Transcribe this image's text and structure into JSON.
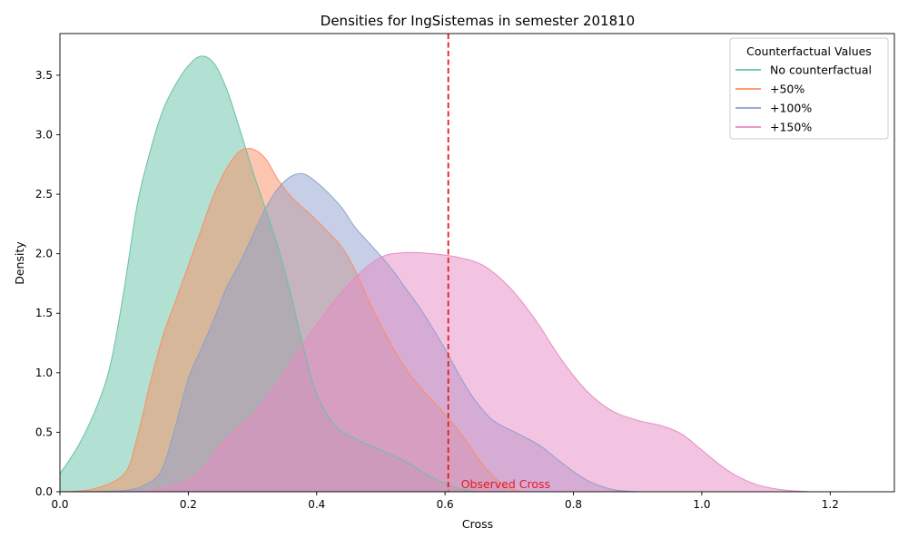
{
  "chart_data": {
    "type": "area",
    "title": "Densities for IngSistemas in semester 201810",
    "xlabel": "Cross",
    "ylabel": "Density",
    "xlim": [
      0.0,
      1.3
    ],
    "ylim": [
      0.0,
      3.85
    ],
    "xticks": [
      "0.0",
      "0.2",
      "0.4",
      "0.6",
      "0.8",
      "1.0",
      "1.2"
    ],
    "yticks": [
      "0.0",
      "0.5",
      "1.0",
      "1.5",
      "2.0",
      "2.5",
      "3.0",
      "3.5"
    ],
    "grid": false,
    "legend": {
      "title": "Counterfactual Values",
      "placement": "top-right"
    },
    "observed_line": {
      "x": 0.605,
      "label": "Observed Cross",
      "color": "#e31a1c"
    },
    "series": [
      {
        "name": "No counterfactual",
        "color": "#66c2a5",
        "points": [
          [
            0.0,
            0.15
          ],
          [
            0.03,
            0.4
          ],
          [
            0.06,
            0.75
          ],
          [
            0.08,
            1.1
          ],
          [
            0.1,
            1.7
          ],
          [
            0.12,
            2.4
          ],
          [
            0.14,
            2.85
          ],
          [
            0.16,
            3.2
          ],
          [
            0.18,
            3.42
          ],
          [
            0.2,
            3.58
          ],
          [
            0.22,
            3.66
          ],
          [
            0.24,
            3.6
          ],
          [
            0.26,
            3.38
          ],
          [
            0.28,
            3.05
          ],
          [
            0.3,
            2.7
          ],
          [
            0.32,
            2.38
          ],
          [
            0.34,
            2.05
          ],
          [
            0.36,
            1.65
          ],
          [
            0.38,
            1.2
          ],
          [
            0.4,
            0.82
          ],
          [
            0.43,
            0.55
          ],
          [
            0.47,
            0.42
          ],
          [
            0.5,
            0.35
          ],
          [
            0.54,
            0.25
          ],
          [
            0.58,
            0.12
          ],
          [
            0.62,
            0.03
          ],
          [
            0.65,
            0.0
          ]
        ]
      },
      {
        "name": "+50%",
        "color": "#fc8d62",
        "points": [
          [
            0.0,
            0.0
          ],
          [
            0.05,
            0.02
          ],
          [
            0.1,
            0.15
          ],
          [
            0.12,
            0.45
          ],
          [
            0.14,
            0.9
          ],
          [
            0.16,
            1.3
          ],
          [
            0.18,
            1.6
          ],
          [
            0.2,
            1.9
          ],
          [
            0.22,
            2.2
          ],
          [
            0.24,
            2.5
          ],
          [
            0.26,
            2.72
          ],
          [
            0.28,
            2.86
          ],
          [
            0.3,
            2.88
          ],
          [
            0.32,
            2.8
          ],
          [
            0.34,
            2.62
          ],
          [
            0.36,
            2.48
          ],
          [
            0.38,
            2.38
          ],
          [
            0.4,
            2.28
          ],
          [
            0.42,
            2.17
          ],
          [
            0.44,
            2.05
          ],
          [
            0.46,
            1.86
          ],
          [
            0.48,
            1.62
          ],
          [
            0.5,
            1.4
          ],
          [
            0.52,
            1.2
          ],
          [
            0.55,
            0.95
          ],
          [
            0.6,
            0.65
          ],
          [
            0.63,
            0.45
          ],
          [
            0.66,
            0.22
          ],
          [
            0.69,
            0.06
          ],
          [
            0.72,
            0.0
          ]
        ]
      },
      {
        "name": "+100%",
        "color": "#8da0cb",
        "points": [
          [
            0.0,
            0.0
          ],
          [
            0.1,
            0.01
          ],
          [
            0.14,
            0.08
          ],
          [
            0.16,
            0.2
          ],
          [
            0.18,
            0.55
          ],
          [
            0.2,
            0.95
          ],
          [
            0.22,
            1.2
          ],
          [
            0.24,
            1.45
          ],
          [
            0.26,
            1.72
          ],
          [
            0.28,
            1.92
          ],
          [
            0.3,
            2.15
          ],
          [
            0.32,
            2.38
          ],
          [
            0.34,
            2.55
          ],
          [
            0.36,
            2.65
          ],
          [
            0.38,
            2.67
          ],
          [
            0.4,
            2.6
          ],
          [
            0.42,
            2.5
          ],
          [
            0.44,
            2.38
          ],
          [
            0.46,
            2.22
          ],
          [
            0.48,
            2.1
          ],
          [
            0.5,
            1.98
          ],
          [
            0.52,
            1.85
          ],
          [
            0.54,
            1.7
          ],
          [
            0.56,
            1.55
          ],
          [
            0.58,
            1.38
          ],
          [
            0.6,
            1.2
          ],
          [
            0.62,
            1.0
          ],
          [
            0.64,
            0.82
          ],
          [
            0.66,
            0.68
          ],
          [
            0.68,
            0.58
          ],
          [
            0.72,
            0.47
          ],
          [
            0.75,
            0.38
          ],
          [
            0.78,
            0.25
          ],
          [
            0.82,
            0.1
          ],
          [
            0.86,
            0.02
          ],
          [
            0.9,
            0.0
          ]
        ]
      },
      {
        "name": "+150%",
        "color": "#e78ac3",
        "points": [
          [
            0.0,
            0.0
          ],
          [
            0.1,
            0.0
          ],
          [
            0.15,
            0.02
          ],
          [
            0.2,
            0.1
          ],
          [
            0.23,
            0.25
          ],
          [
            0.26,
            0.45
          ],
          [
            0.3,
            0.65
          ],
          [
            0.34,
            0.92
          ],
          [
            0.38,
            1.25
          ],
          [
            0.42,
            1.55
          ],
          [
            0.46,
            1.8
          ],
          [
            0.5,
            1.97
          ],
          [
            0.54,
            2.01
          ],
          [
            0.58,
            2.0
          ],
          [
            0.62,
            1.97
          ],
          [
            0.66,
            1.9
          ],
          [
            0.7,
            1.72
          ],
          [
            0.74,
            1.45
          ],
          [
            0.78,
            1.12
          ],
          [
            0.82,
            0.85
          ],
          [
            0.86,
            0.68
          ],
          [
            0.9,
            0.6
          ],
          [
            0.94,
            0.55
          ],
          [
            0.97,
            0.48
          ],
          [
            1.0,
            0.35
          ],
          [
            1.04,
            0.18
          ],
          [
            1.08,
            0.07
          ],
          [
            1.12,
            0.02
          ],
          [
            1.17,
            0.0
          ],
          [
            1.23,
            0.0
          ]
        ]
      }
    ]
  }
}
